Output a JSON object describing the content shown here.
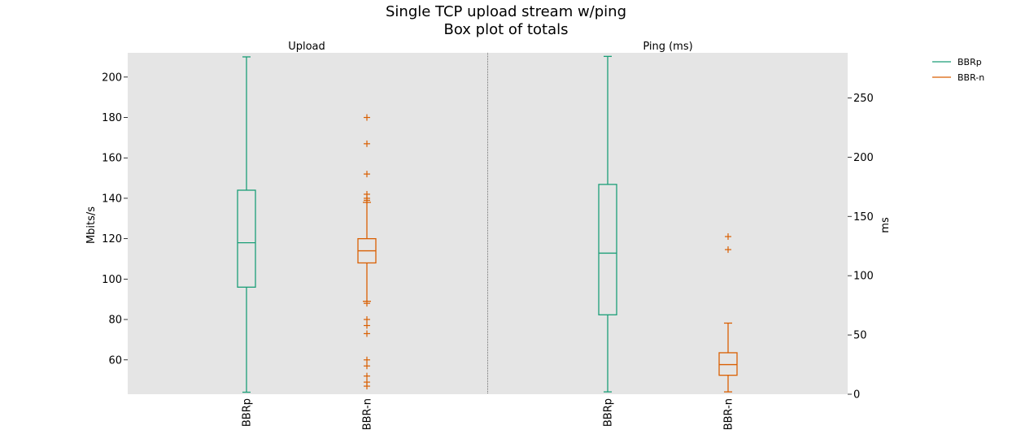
{
  "title_line1": "Single TCP upload stream w/ping",
  "title_line2": "Box plot of totals",
  "legend": [
    {
      "label": "BBRp",
      "color": "#1b9e77"
    },
    {
      "label": "BBR-n",
      "color": "#d95f02"
    }
  ],
  "chart_data": [
    {
      "type": "box",
      "title": "Upload",
      "ylabel": "Mbits/s",
      "ylim": [
        43,
        212
      ],
      "yticks": [
        60,
        80,
        100,
        120,
        140,
        160,
        180,
        200
      ],
      "grid": false,
      "categories": [
        "BBRp",
        "BBR-n"
      ],
      "boxes": [
        {
          "name": "BBRp",
          "color": "#1b9e77",
          "whisker_low": 44,
          "q1": 96,
          "median": 118,
          "q3": 144,
          "whisker_high": 210,
          "outliers": []
        },
        {
          "name": "BBR-n",
          "color": "#d95f02",
          "whisker_low": 89,
          "q1": 108,
          "median": 114,
          "q3": 120,
          "whisker_high": 138,
          "outliers": [
            180,
            167,
            152,
            142,
            140,
            139,
            88,
            80,
            77,
            73,
            60,
            57,
            52,
            49,
            47
          ]
        }
      ]
    },
    {
      "type": "box",
      "title": "Ping (ms)",
      "ylabel": "ms",
      "ylim": [
        0,
        288
      ],
      "yticks": [
        0,
        50,
        100,
        150,
        200,
        250
      ],
      "grid": false,
      "categories": [
        "BBRp",
        "BBR-n"
      ],
      "boxes": [
        {
          "name": "BBRp",
          "color": "#1b9e77",
          "whisker_low": 2,
          "q1": 67,
          "median": 119,
          "q3": 177,
          "whisker_high": 285,
          "outliers": []
        },
        {
          "name": "BBR-n",
          "color": "#d95f02",
          "whisker_low": 2,
          "q1": 16,
          "median": 25,
          "q3": 35,
          "whisker_high": 60,
          "outliers": [
            133,
            122
          ]
        }
      ]
    }
  ]
}
